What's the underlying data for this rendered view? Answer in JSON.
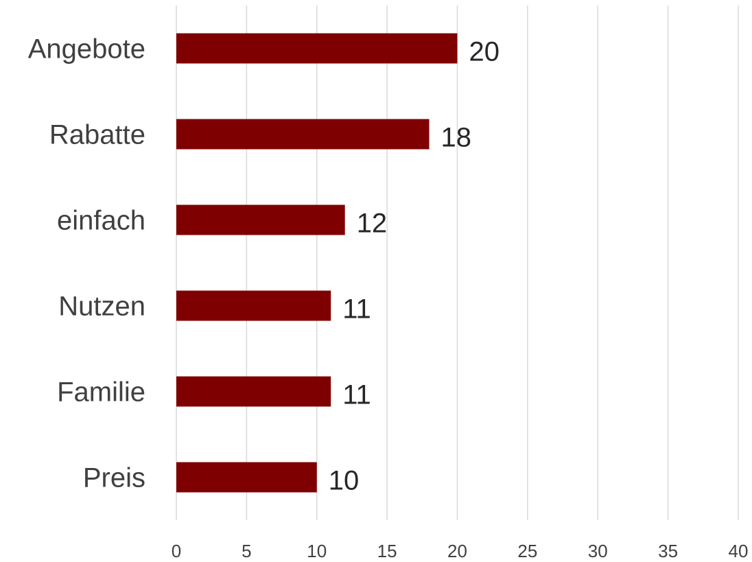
{
  "chart_data": {
    "type": "bar",
    "orientation": "horizontal",
    "categories": [
      "Angebote",
      "Rabatte",
      "einfach",
      "Nutzen",
      "Familie",
      "Preis"
    ],
    "values": [
      20,
      18,
      12,
      11,
      11,
      10
    ],
    "data_labels": [
      "20",
      "18",
      "12",
      "11",
      "11",
      "10"
    ],
    "xlim": [
      0,
      40
    ],
    "x_ticks": [
      0,
      5,
      10,
      15,
      20,
      25,
      30,
      35,
      40
    ],
    "grid": true,
    "legend": "none",
    "title": "",
    "xlabel": "",
    "ylabel": "",
    "colors": {
      "bar": "#7f0000",
      "grid": "#d9d9d9",
      "axis_text": "#404040",
      "label_text": "#262626"
    }
  }
}
